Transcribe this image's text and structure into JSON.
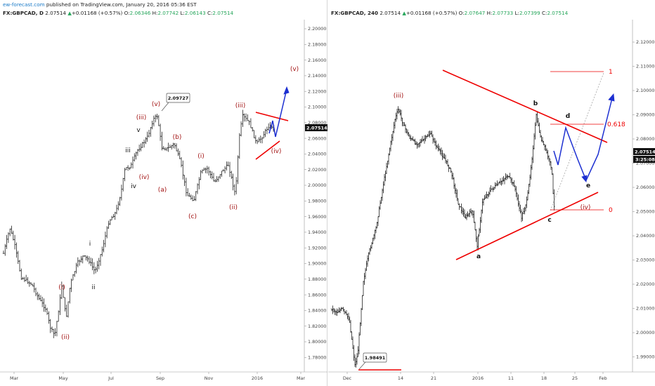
{
  "left": {
    "publisher_site": "ew-forecast.com",
    "publisher_rest": " published on TradingView.com, January 20, 2016 05:36 EST",
    "symbol": "FX:GBPCAD, D",
    "last": "2.07514",
    "change": "+0.01168 (+0.57%)",
    "o_label": "O:",
    "o": "2.06346",
    "h_label": "H:",
    "h": "2.07742",
    "l_label": "L:",
    "l": "2.06143",
    "c_label": "C:",
    "c": "2.07514",
    "price_ticks": [
      "2.20000",
      "2.18000",
      "2.16000",
      "2.14000",
      "2.12000",
      "2.10000",
      "2.08000",
      "2.06000",
      "2.04000",
      "2.02000",
      "2.00000",
      "1.98000",
      "1.96000",
      "1.94000",
      "1.92000",
      "1.90000",
      "1.88000",
      "1.86000",
      "1.84000",
      "1.82000",
      "1.80000",
      "1.78000"
    ],
    "last_price_tag": "2.07514",
    "time_ticks": [
      "Mar",
      "May",
      "Jul",
      "Sep",
      "Nov",
      "2016",
      "Mar"
    ],
    "callout": "2.09727",
    "waves_red": [
      "(i)",
      "(ii)",
      "(iii)",
      "(iv)",
      "(v)",
      "(a)",
      "(b)",
      "(c)",
      "(i)",
      "(ii)",
      "(iii)",
      "(iv)",
      "(v)"
    ],
    "waves_black": [
      "i",
      "ii",
      "iii",
      "iv",
      "v"
    ]
  },
  "right": {
    "symbol": "FX:GBPCAD, 240",
    "last": "2.07514",
    "change": "+0.01168 (+0.57%)",
    "o_label": "O:",
    "o": "2.07647",
    "h_label": "H:",
    "h": "2.07733",
    "l_label": "L:",
    "l": "2.07399",
    "c_label": "C:",
    "c": "2.07514",
    "price_ticks": [
      "2.12000",
      "2.11000",
      "2.10000",
      "2.09000",
      "2.08000",
      "2.07000",
      "2.06000",
      "2.05000",
      "2.04000",
      "2.03000",
      "2.02000",
      "2.01000",
      "2.00000",
      "1.99000"
    ],
    "last_price_tag": "2.07514",
    "countdown_tag": "3:25:08",
    "time_ticks": [
      "Dec",
      "14",
      "21",
      "2016",
      "11",
      "18",
      "25",
      "Feb"
    ],
    "callout": "1.98491",
    "fib": [
      "1",
      "0.618",
      "0"
    ],
    "waves_red": [
      "(iii)",
      "(iv)"
    ],
    "waves_black": [
      "a",
      "b",
      "c",
      "d",
      "e"
    ]
  }
}
